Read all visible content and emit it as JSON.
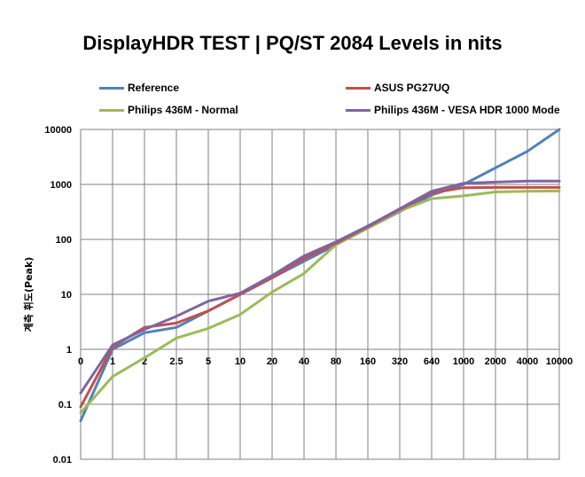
{
  "chart_data": {
    "type": "line",
    "title": "DisplayHDR TEST | PQ/ST 2084 Levels in nits",
    "xlabel": "",
    "ylabel": "계측 휘도(Peak)",
    "y_scale": "log",
    "ylim": [
      0.01,
      10000
    ],
    "grid": true,
    "legend_position": "top",
    "categories": [
      "0",
      "1",
      "2",
      "2.5",
      "5",
      "10",
      "20",
      "40",
      "80",
      "160",
      "320",
      "640",
      "1000",
      "2000",
      "4000",
      "10000"
    ],
    "y_ticks": [
      "0.01",
      "0.1",
      "1",
      "10",
      "100",
      "1000",
      "10000"
    ],
    "series": [
      {
        "name": "Reference",
        "color": "#4f81bd",
        "values": [
          0.05,
          1,
          2,
          2.5,
          5,
          10,
          20,
          40,
          80,
          160,
          320,
          640,
          1000,
          2000,
          4000,
          10000
        ]
      },
      {
        "name": "ASUS PG27UQ",
        "color": "#c0504d",
        "values": [
          0.09,
          1.1,
          2.5,
          3,
          5,
          10,
          20,
          45,
          85,
          170,
          350,
          700,
          870,
          880,
          880,
          880
        ]
      },
      {
        "name": "Philips 436M - Normal",
        "color": "#9bbb59",
        "values": [
          0.07,
          0.32,
          0.7,
          1.6,
          2.4,
          4.3,
          11,
          24,
          80,
          160,
          330,
          550,
          620,
          730,
          750,
          760
        ]
      },
      {
        "name": "Philips 436M - VESA HDR 1000 Mode",
        "color": "#8064a2",
        "values": [
          0.16,
          1.2,
          2.3,
          4,
          7.5,
          10.5,
          22,
          50,
          90,
          175,
          360,
          750,
          1050,
          1100,
          1150,
          1150
        ]
      }
    ]
  }
}
